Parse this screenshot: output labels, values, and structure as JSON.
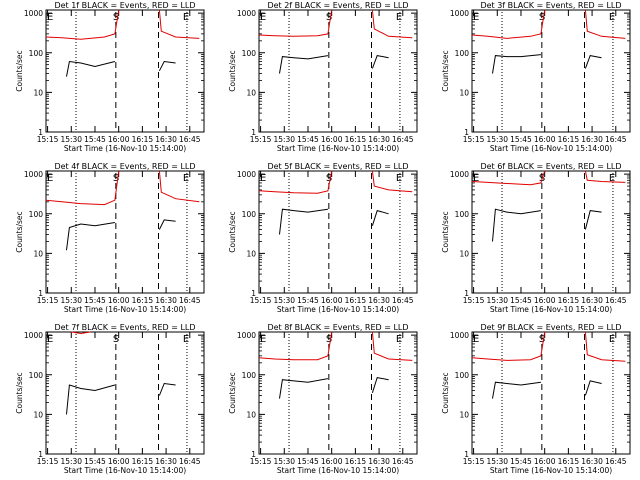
{
  "figure": {
    "common": {
      "xlabel": "Start Time (16-Nov-10 15:14:00)",
      "ylabel": "Counts/sec",
      "x_ticklabels": [
        "15:15",
        "15:30",
        "15:45",
        "16:00",
        "16:15",
        "16:30",
        "16:45"
      ],
      "x_ticks_min": [
        15.25,
        15.5,
        15.75,
        16.0,
        16.25,
        16.5,
        16.75
      ],
      "y_ticklabels": [
        "1",
        "10",
        "100",
        "1000"
      ],
      "y_ticks": [
        1,
        10,
        100,
        1000
      ],
      "xlim_hours": [
        15.2333,
        16.9
      ],
      "ylim": [
        1,
        1200
      ],
      "yscale": "log",
      "colors": {
        "events": "#000000",
        "lld": "#e00000"
      },
      "marker_labels": {
        "E_left": "E",
        "S": "S",
        "E_right": "E"
      }
    }
  },
  "chart_data": [
    {
      "type": "line",
      "title": "Det 1f BLACK = Events, RED = LLD",
      "series": [
        {
          "name": "Events",
          "color": "#000000",
          "segments": [
            {
              "x": [
                15.45,
                15.48,
                15.6,
                15.75,
                15.96
              ],
              "y": [
                25,
                60,
                55,
                45,
                60
              ]
            },
            {
              "x": [
                16.43,
                16.48,
                16.6
              ],
              "y": [
                35,
                60,
                55
              ]
            }
          ]
        },
        {
          "name": "LLD",
          "color": "#e00000",
          "segments": [
            {
              "x": [
                15.2333,
                15.4,
                15.6,
                15.85,
                15.96,
                16.0
              ],
              "y": [
                250,
                240,
                220,
                250,
                300,
                1200
              ]
            },
            {
              "x": [
                16.43,
                16.45,
                16.6,
                16.85
              ],
              "y": [
                1200,
                350,
                250,
                230
              ]
            }
          ]
        }
      ],
      "vlines": [
        {
          "x": 15.55,
          "style": "dotted"
        },
        {
          "x": 15.97,
          "style": "dashed"
        },
        {
          "x": 16.42,
          "style": "dashed"
        },
        {
          "x": 16.72,
          "style": "dotted"
        }
      ],
      "markers": {
        "E_left": 15.2333,
        "S": 15.97,
        "E_right": 16.72
      }
    },
    {
      "type": "line",
      "title": "Det 2f BLACK = Events, RED = LLD",
      "series": [
        {
          "name": "Events",
          "color": "#000000",
          "segments": [
            {
              "x": [
                15.45,
                15.48,
                15.6,
                15.75,
                15.96
              ],
              "y": [
                30,
                80,
                75,
                70,
                85
              ]
            },
            {
              "x": [
                16.43,
                16.48,
                16.6
              ],
              "y": [
                40,
                85,
                75
              ]
            }
          ]
        },
        {
          "name": "LLD",
          "color": "#e00000",
          "segments": [
            {
              "x": [
                15.2333,
                15.4,
                15.6,
                15.85,
                15.96,
                16.0
              ],
              "y": [
                280,
                270,
                260,
                270,
                300,
                1200
              ]
            },
            {
              "x": [
                16.43,
                16.45,
                16.6,
                16.85
              ],
              "y": [
                1200,
                400,
                260,
                240
              ]
            }
          ]
        }
      ],
      "vlines": [
        {
          "x": 15.55,
          "style": "dotted"
        },
        {
          "x": 15.97,
          "style": "dashed"
        },
        {
          "x": 16.42,
          "style": "dashed"
        },
        {
          "x": 16.72,
          "style": "dotted"
        }
      ],
      "markers": {
        "E_left": 15.2333,
        "S": 15.97,
        "E_right": 16.72
      }
    },
    {
      "type": "line",
      "title": "Det 3f BLACK = Events, RED = LLD",
      "series": [
        {
          "name": "Events",
          "color": "#000000",
          "segments": [
            {
              "x": [
                15.45,
                15.48,
                15.6,
                15.75,
                15.96
              ],
              "y": [
                30,
                85,
                80,
                80,
                90
              ]
            },
            {
              "x": [
                16.43,
                16.48,
                16.6
              ],
              "y": [
                40,
                85,
                75
              ]
            }
          ]
        },
        {
          "name": "LLD",
          "color": "#e00000",
          "segments": [
            {
              "x": [
                15.2333,
                15.4,
                15.6,
                15.85,
                15.96,
                16.0
              ],
              "y": [
                280,
                260,
                230,
                260,
                300,
                1200
              ]
            },
            {
              "x": [
                16.43,
                16.45,
                16.6,
                16.85
              ],
              "y": [
                1200,
                350,
                260,
                230
              ]
            }
          ]
        }
      ],
      "vlines": [
        {
          "x": 15.55,
          "style": "dotted"
        },
        {
          "x": 15.97,
          "style": "dashed"
        },
        {
          "x": 16.42,
          "style": "dashed"
        },
        {
          "x": 16.72,
          "style": "dotted"
        }
      ],
      "markers": {
        "E_left": 15.2333,
        "S": 15.97,
        "E_right": 16.72
      }
    },
    {
      "type": "line",
      "title": "Det 4f BLACK = Events, RED = LLD",
      "series": [
        {
          "name": "Events",
          "color": "#000000",
          "segments": [
            {
              "x": [
                15.45,
                15.48,
                15.6,
                15.75,
                15.96
              ],
              "y": [
                12,
                45,
                55,
                50,
                60
              ]
            },
            {
              "x": [
                16.43,
                16.48,
                16.6
              ],
              "y": [
                40,
                70,
                65
              ]
            }
          ]
        },
        {
          "name": "LLD",
          "color": "#e00000",
          "segments": [
            {
              "x": [
                15.2333,
                15.4,
                15.6,
                15.85,
                15.96,
                16.0
              ],
              "y": [
                220,
                200,
                180,
                170,
                220,
                1200
              ]
            },
            {
              "x": [
                16.43,
                16.45,
                16.6,
                16.85
              ],
              "y": [
                1200,
                350,
                240,
                200
              ]
            }
          ]
        }
      ],
      "vlines": [
        {
          "x": 15.55,
          "style": "dotted"
        },
        {
          "x": 15.97,
          "style": "dashed"
        },
        {
          "x": 16.42,
          "style": "dashed"
        },
        {
          "x": 16.72,
          "style": "dotted"
        }
      ],
      "markers": {
        "E_left": 15.2333,
        "S": 15.97,
        "E_right": 16.72
      }
    },
    {
      "type": "line",
      "title": "Det 5f BLACK = Events, RED = LLD",
      "series": [
        {
          "name": "Events",
          "color": "#000000",
          "segments": [
            {
              "x": [
                15.45,
                15.48,
                15.6,
                15.75,
                15.96
              ],
              "y": [
                30,
                130,
                120,
                110,
                130
              ]
            },
            {
              "x": [
                16.43,
                16.48,
                16.6
              ],
              "y": [
                50,
                120,
                100
              ]
            }
          ]
        },
        {
          "name": "LLD",
          "color": "#e00000",
          "segments": [
            {
              "x": [
                15.2333,
                15.4,
                15.6,
                15.85,
                15.96,
                16.0
              ],
              "y": [
                380,
                360,
                340,
                330,
                380,
                1200
              ]
            },
            {
              "x": [
                16.43,
                16.45,
                16.6,
                16.85
              ],
              "y": [
                1200,
                500,
                400,
                360
              ]
            }
          ]
        }
      ],
      "vlines": [
        {
          "x": 15.55,
          "style": "dotted"
        },
        {
          "x": 15.97,
          "style": "dashed"
        },
        {
          "x": 16.42,
          "style": "dashed"
        },
        {
          "x": 16.72,
          "style": "dotted"
        }
      ],
      "markers": {
        "E_left": 15.2333,
        "S": 15.97,
        "E_right": 16.72
      }
    },
    {
      "type": "line",
      "title": "Det 6f BLACK = Events, RED = LLD",
      "series": [
        {
          "name": "Events",
          "color": "#000000",
          "segments": [
            {
              "x": [
                15.45,
                15.48,
                15.6,
                15.75,
                15.96
              ],
              "y": [
                20,
                130,
                110,
                100,
                120
              ]
            },
            {
              "x": [
                16.43,
                16.48,
                16.6
              ],
              "y": [
                40,
                120,
                110
              ]
            }
          ]
        },
        {
          "name": "LLD",
          "color": "#e00000",
          "segments": [
            {
              "x": [
                15.2333,
                15.4,
                15.6,
                15.85,
                15.96,
                16.0
              ],
              "y": [
                650,
                620,
                580,
                540,
                600,
                1200
              ]
            },
            {
              "x": [
                16.43,
                16.45,
                16.6,
                16.85
              ],
              "y": [
                1200,
                700,
                650,
                620
              ]
            }
          ]
        }
      ],
      "vlines": [
        {
          "x": 15.55,
          "style": "dotted"
        },
        {
          "x": 15.97,
          "style": "dashed"
        },
        {
          "x": 16.42,
          "style": "dashed"
        },
        {
          "x": 16.72,
          "style": "dotted"
        }
      ],
      "markers": {
        "E_left": 15.2333,
        "S": 15.97,
        "E_right": 16.72
      }
    },
    {
      "type": "line",
      "title": "Det 7f BLACK = Events, RED = LLD",
      "series": [
        {
          "name": "Events",
          "color": "#000000",
          "segments": [
            {
              "x": [
                15.45,
                15.48,
                15.6,
                15.75,
                15.96
              ],
              "y": [
                10,
                55,
                45,
                40,
                55
              ]
            },
            {
              "x": [
                16.43,
                16.48,
                16.6
              ],
              "y": [
                30,
                60,
                55
              ]
            }
          ]
        },
        {
          "name": "LLD",
          "color": "#e00000",
          "segments": [
            {
              "x": [
                15.5,
                15.6,
                15.7
              ],
              "y": [
                1200,
                1100,
                1200
              ]
            }
          ]
        }
      ],
      "vlines": [
        {
          "x": 15.55,
          "style": "dotted"
        },
        {
          "x": 15.97,
          "style": "dashed"
        },
        {
          "x": 16.42,
          "style": "dashed"
        },
        {
          "x": 16.72,
          "style": "dotted"
        }
      ],
      "markers": {
        "E_left": 15.2333,
        "S": 15.97,
        "E_right": 16.72
      }
    },
    {
      "type": "line",
      "title": "Det 8f BLACK = Events, RED = LLD",
      "series": [
        {
          "name": "Events",
          "color": "#000000",
          "segments": [
            {
              "x": [
                15.45,
                15.48,
                15.6,
                15.75,
                15.96
              ],
              "y": [
                25,
                75,
                70,
                65,
                80
              ]
            },
            {
              "x": [
                16.43,
                16.48,
                16.6
              ],
              "y": [
                35,
                85,
                75
              ]
            }
          ]
        },
        {
          "name": "LLD",
          "color": "#e00000",
          "segments": [
            {
              "x": [
                15.2333,
                15.4,
                15.6,
                15.85,
                15.96,
                16.0
              ],
              "y": [
                270,
                250,
                240,
                240,
                300,
                1200
              ]
            },
            {
              "x": [
                16.43,
                16.45,
                16.6,
                16.85
              ],
              "y": [
                1200,
                350,
                250,
                230
              ]
            }
          ]
        }
      ],
      "vlines": [
        {
          "x": 15.55,
          "style": "dotted"
        },
        {
          "x": 15.97,
          "style": "dashed"
        },
        {
          "x": 16.42,
          "style": "dashed"
        },
        {
          "x": 16.72,
          "style": "dotted"
        }
      ],
      "markers": {
        "E_left": 15.2333,
        "S": 15.97,
        "E_right": 16.72
      }
    },
    {
      "type": "line",
      "title": "Det 9f BLACK = Events, RED = LLD",
      "series": [
        {
          "name": "Events",
          "color": "#000000",
          "segments": [
            {
              "x": [
                15.45,
                15.48,
                15.6,
                15.75,
                15.96
              ],
              "y": [
                25,
                65,
                60,
                55,
                65
              ]
            },
            {
              "x": [
                16.43,
                16.48,
                16.6
              ],
              "y": [
                30,
                70,
                60
              ]
            }
          ]
        },
        {
          "name": "LLD",
          "color": "#e00000",
          "segments": [
            {
              "x": [
                15.2333,
                15.4,
                15.6,
                15.85,
                15.96,
                16.0
              ],
              "y": [
                270,
                250,
                230,
                240,
                300,
                1200
              ]
            },
            {
              "x": [
                16.43,
                16.45,
                16.6,
                16.85
              ],
              "y": [
                1200,
                320,
                240,
                220
              ]
            }
          ]
        }
      ],
      "vlines": [
        {
          "x": 15.55,
          "style": "dotted"
        },
        {
          "x": 15.97,
          "style": "dashed"
        },
        {
          "x": 16.42,
          "style": "dashed"
        },
        {
          "x": 16.72,
          "style": "dotted"
        }
      ],
      "markers": {
        "E_left": 15.2333,
        "S": 15.97,
        "E_right": 16.72
      }
    }
  ]
}
